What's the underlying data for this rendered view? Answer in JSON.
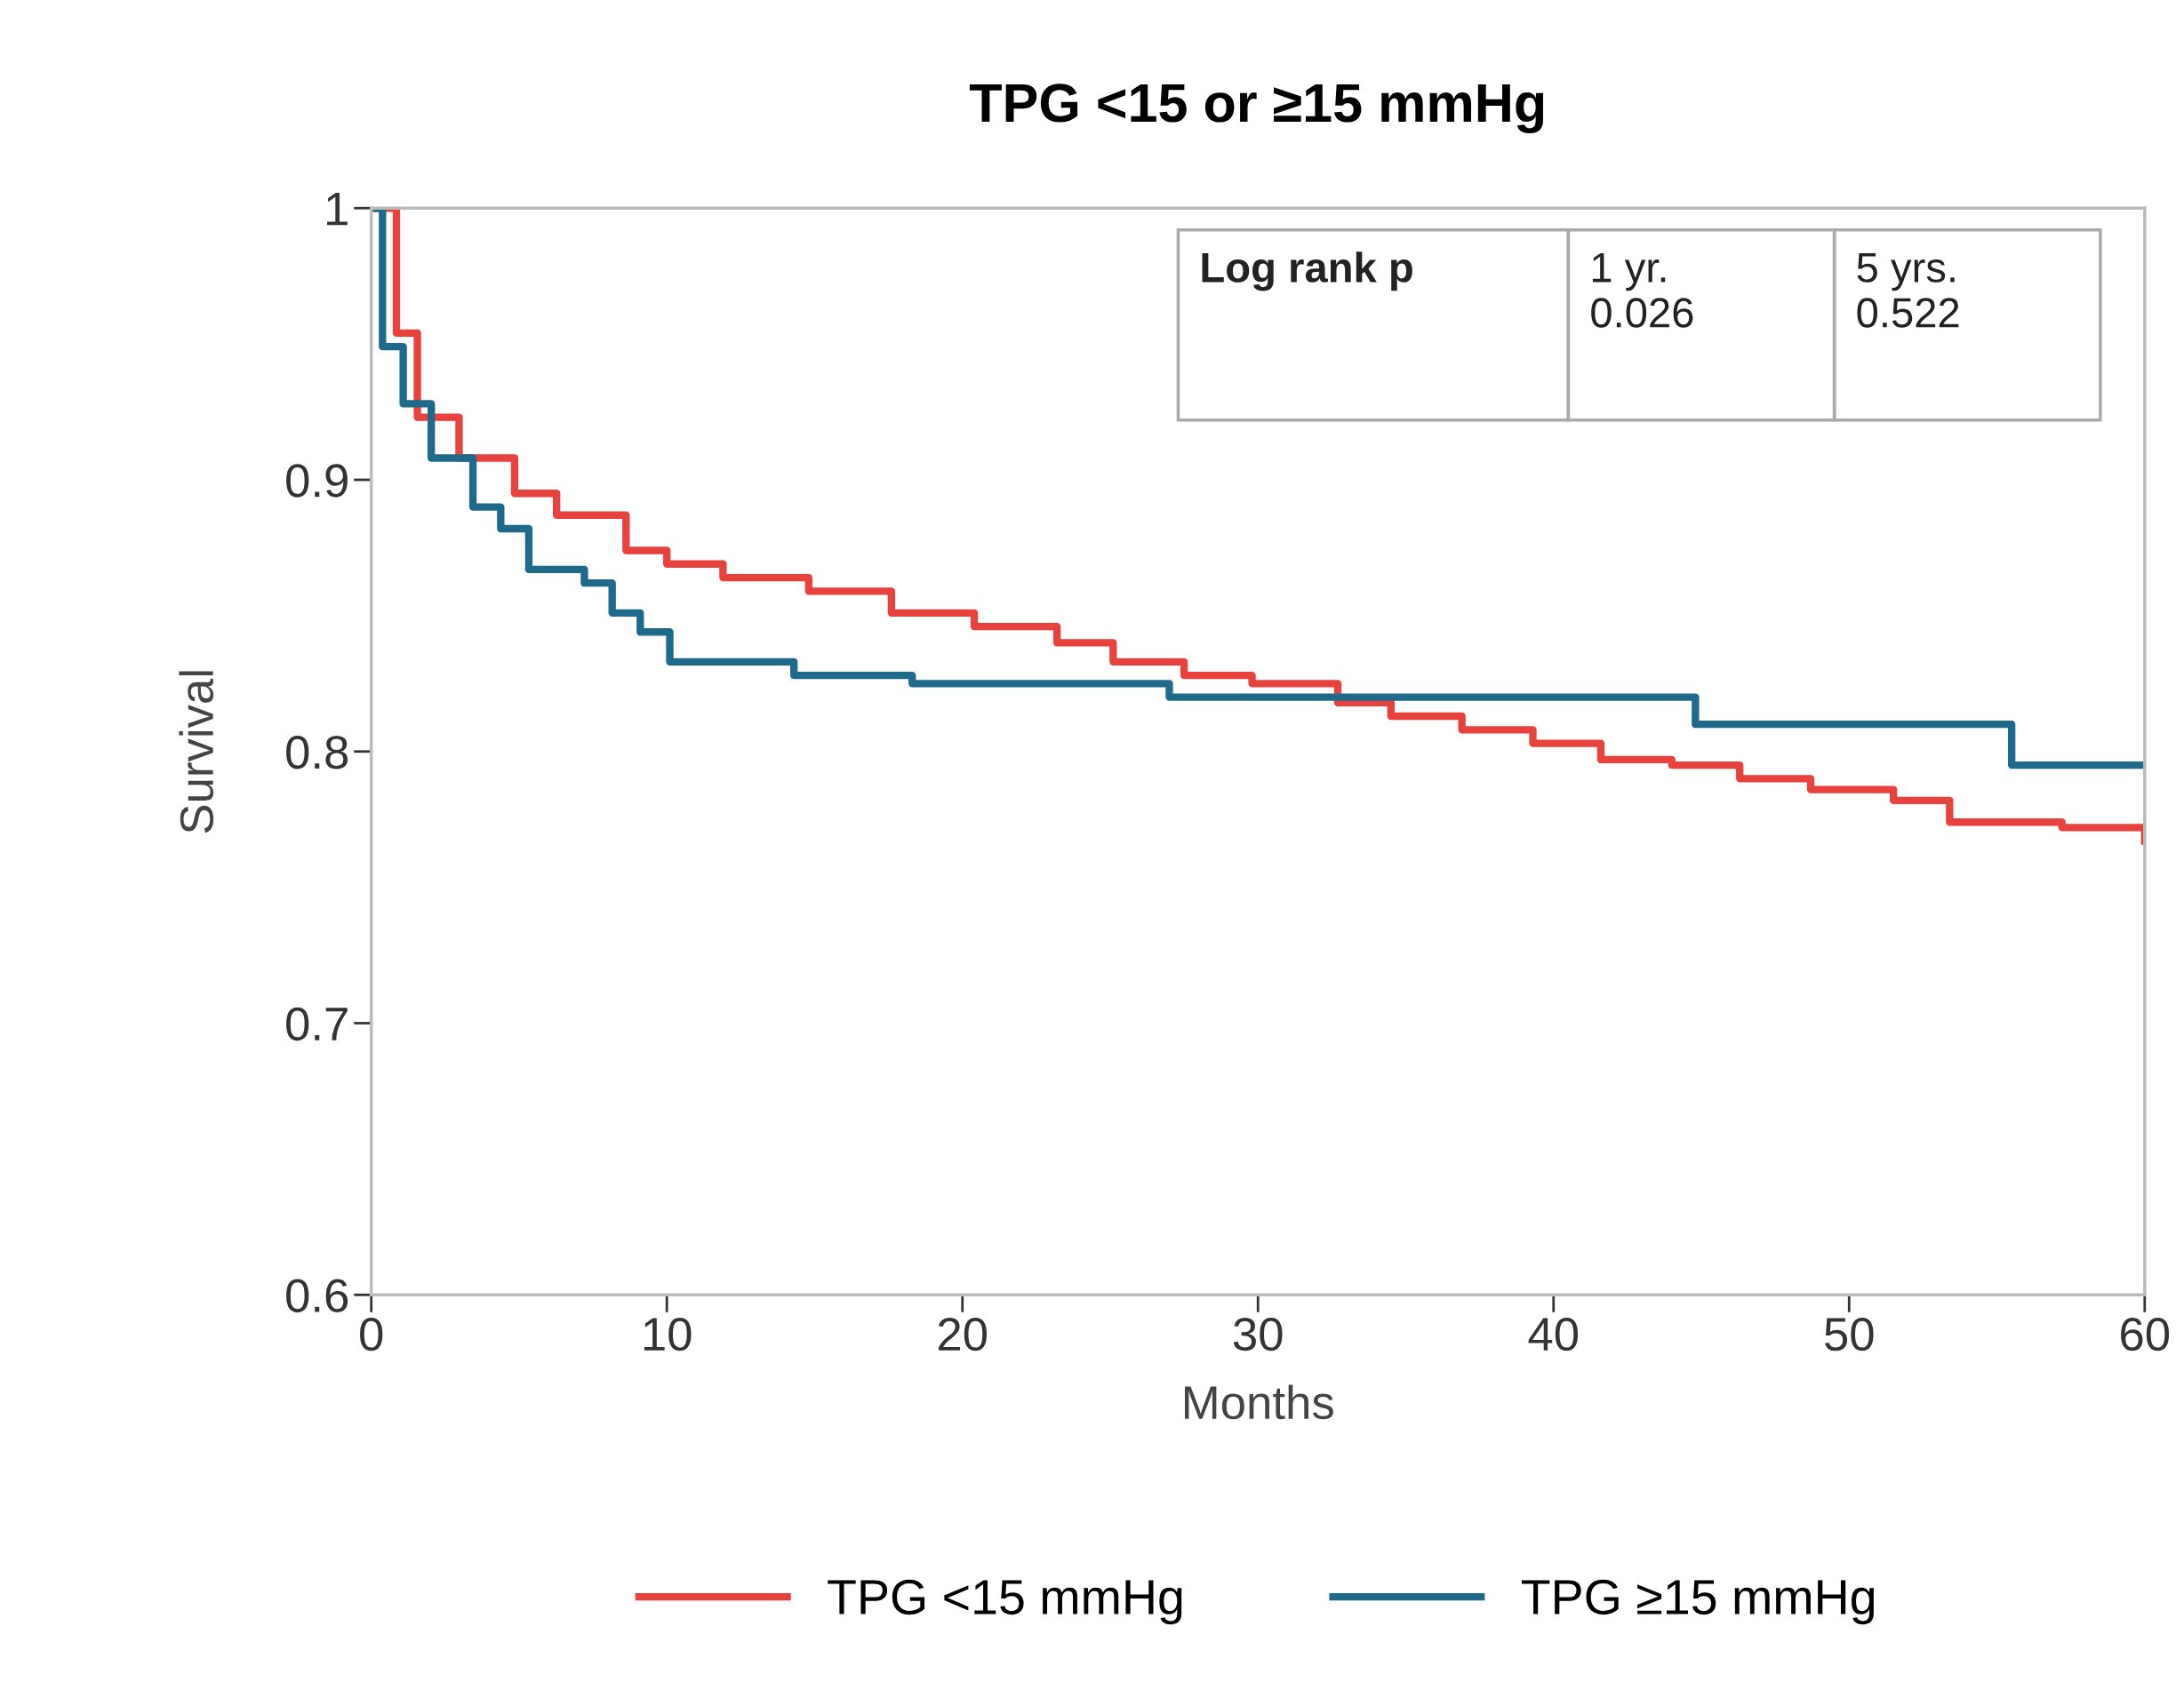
{
  "chart_data": {
    "type": "step",
    "title": "TPG <15 or ≥15 mmHg",
    "xlabel": "Months",
    "ylabel": "Survival",
    "xlim": [
      0,
      60
    ],
    "xticks": [
      0,
      10,
      20,
      30,
      40,
      50,
      60
    ],
    "ylim": [
      0.6,
      1
    ],
    "yticks": [
      0.6,
      0.7,
      0.8,
      0.9,
      1
    ],
    "legend": "bottom",
    "grid": false,
    "marker": "none",
    "line_style": "solid",
    "annotations": [
      "Log rank p",
      "1 yr.\n0.026",
      "5 yrs.\n0.522"
    ],
    "series": [
      {
        "name": "TPG <15 mmHg",
        "color": "#e8423f",
        "x": [
          0,
          0.85,
          1.56,
          2.97,
          4.85,
          6.27,
          8.62,
          10.0,
          11.9,
          14.8,
          17.6,
          20.4,
          23.2,
          25.1,
          27.5,
          29.8,
          32.7,
          34.5,
          36.9,
          39.3,
          41.6,
          44.0,
          46.3,
          48.7,
          51.5,
          53.4,
          57.2,
          60
        ],
        "values": [
          1,
          0.954,
          0.923,
          0.908,
          0.895,
          0.887,
          0.874,
          0.869,
          0.864,
          0.859,
          0.851,
          0.846,
          0.84,
          0.833,
          0.828,
          0.825,
          0.818,
          0.813,
          0.808,
          0.803,
          0.797,
          0.795,
          0.79,
          0.786,
          0.782,
          0.774,
          0.772,
          0.767
        ]
      },
      {
        "name": "TPG ≥15 mmHg",
        "color": "#1f6a8a",
        "x": [
          0,
          0.38,
          1.08,
          2.03,
          3.44,
          4.38,
          5.33,
          7.21,
          8.15,
          9.1,
          10.1,
          14.3,
          18.3,
          27.0,
          44.8,
          55.5,
          60
        ],
        "values": [
          1,
          0.949,
          0.928,
          0.908,
          0.89,
          0.882,
          0.867,
          0.862,
          0.851,
          0.844,
          0.833,
          0.828,
          0.825,
          0.82,
          0.81,
          0.795,
          0.795
        ]
      }
    ]
  }
}
